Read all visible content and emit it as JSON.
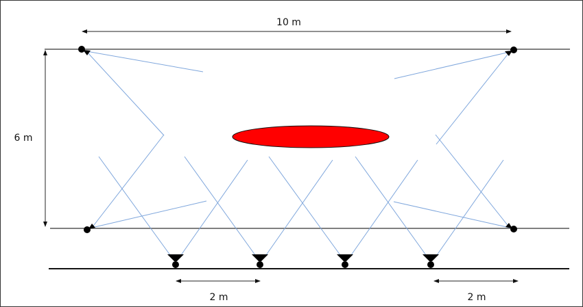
{
  "dimensions": {
    "width_label": "10 m",
    "height_label": "6 m",
    "spacing_label_left": "2 m",
    "spacing_label_right": "2 m"
  },
  "colors": {
    "target": "#ff0000",
    "beam": "#7ea6dc",
    "rail": "#555555"
  }
}
